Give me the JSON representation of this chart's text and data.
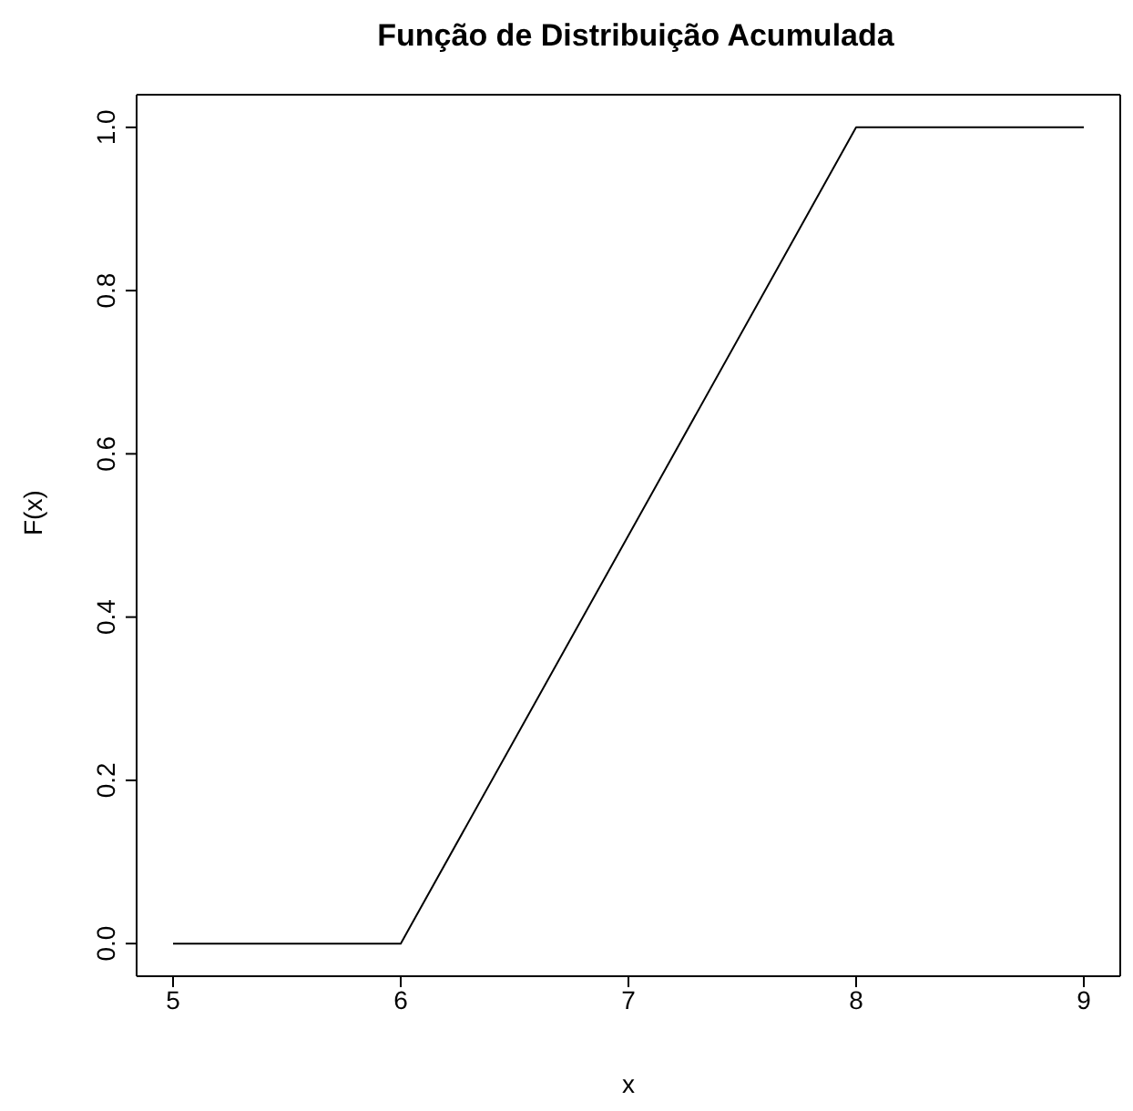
{
  "chart_data": {
    "type": "line",
    "title": "Função de Distribuição Acumulada",
    "xlabel": "x",
    "ylabel": "F(x)",
    "x": [
      5,
      6,
      8,
      9
    ],
    "series": [
      {
        "color": "#000000",
        "values": [
          0,
          0,
          1,
          1
        ]
      }
    ],
    "xlim": [
      4.84,
      9.16
    ],
    "xticks": [
      5,
      6,
      7,
      8,
      9
    ],
    "ylim": [
      -0.04,
      1.04
    ],
    "yticks": [
      {
        "value": 0,
        "label": "0.0"
      },
      {
        "value": 0.2,
        "label": "0.2"
      },
      {
        "value": 0.4,
        "label": "0.4"
      },
      {
        "value": 0.6,
        "label": "0.6"
      },
      {
        "value": 0.8,
        "label": "0.8"
      },
      {
        "value": 1,
        "label": "1.0"
      }
    ],
    "grid": false,
    "marker": "none",
    "line_style": "solid"
  }
}
